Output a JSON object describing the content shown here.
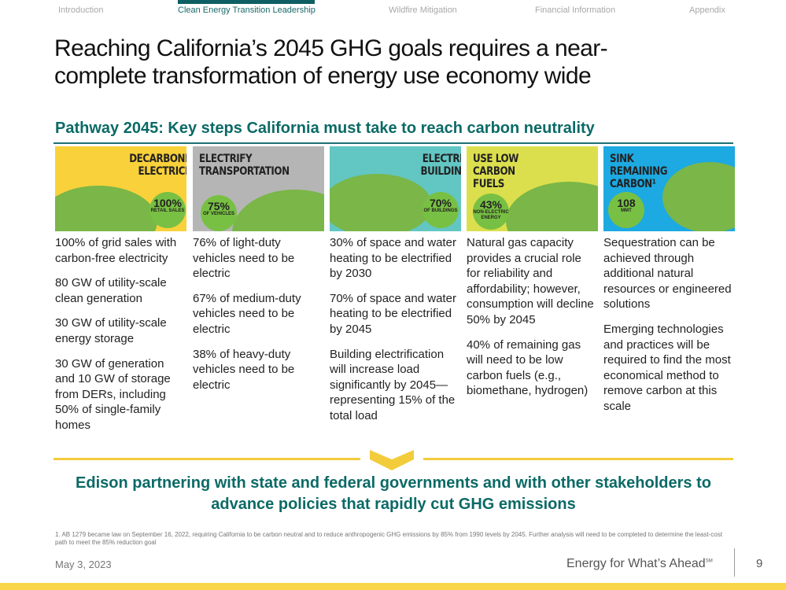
{
  "nav": {
    "tabs": [
      "Introduction",
      "Clean Energy Transition Leadership",
      "Wildfire Mitigation",
      "Financial Information",
      "Appendix"
    ],
    "active": 1
  },
  "title": "Reaching California’s 2045 GHG goals requires a near-complete transformation of energy use economy wide",
  "subtitle": "Pathway 2045: Key steps California must take to reach carbon neutrality",
  "columns": [
    {
      "heading": "DECARBONIZE ELECTRICITY",
      "stat": "100%",
      "stat_label": "RETAIL SALES",
      "bg": "#f9d13a",
      "points": [
        "100% of grid sales with carbon-free electricity",
        "80 GW of utility-scale clean generation",
        "30 GW of utility-scale energy storage",
        "30 GW of generation and 10 GW of storage from DERs, including 50% of single-family homes"
      ]
    },
    {
      "heading": "ELECTRIFY TRANSPORTATION",
      "stat": "75%",
      "stat_label": "OF VEHICLES",
      "bg": "#b5b5b5",
      "points": [
        "76% of light-duty vehicles need to be electric",
        "67% of medium-duty vehicles need to be electric",
        "38% of heavy-duty vehicles need to be electric"
      ]
    },
    {
      "heading": "ELECTRIFY BUILDINGS",
      "stat": "70%",
      "stat_label": "OF BUILDINGS",
      "bg": "#62c6c3",
      "points": [
        "30% of space and water heating to be electrified by 2030",
        "70% of space and water heating to be electrified by 2045",
        "Building electrification will increase load significantly by 2045—representing 15% of the total load"
      ]
    },
    {
      "heading": "USE LOW CARBON FUELS",
      "stat": "43%",
      "stat_label": "NON-ELECTRIC ENERGY",
      "bg": "#dcdf4d",
      "points": [
        "Natural gas capacity provides a crucial role for reliability and affordability; however, consumption will decline 50% by 2045",
        "40% of remaining gas will need to be low carbon fuels (e.g., biomethane, hydrogen)"
      ]
    },
    {
      "heading": "SINK REMAINING CARBON¹",
      "stat": "108",
      "stat_label": "MMT",
      "bg": "#1da9e1",
      "points": [
        "Sequestration can be achieved through additional natural resources or engineered solutions",
        "Emerging technologies and practices will be required to find the most economical method to remove carbon at this scale"
      ]
    }
  ],
  "conclusion": "Edison partnering with state and federal governments and with other stakeholders to advance policies that rapidly cut GHG emissions",
  "footnote": "1.  AB 1279 became law on September 16, 2022, requiring California to be carbon neutral and to reduce anthropogenic GHG emissions by 85% from 1990 levels by 2045. Further analysis will need to be completed to determine the least-cost path to meet the 85% reduction goal",
  "footer": {
    "date": "May 3, 2023",
    "tagline": "Energy for What’s Ahead",
    "tagline_mark": "SM",
    "page": "9"
  },
  "colors": {
    "teal": "#0b6a66",
    "yellow": "#f9d649"
  }
}
